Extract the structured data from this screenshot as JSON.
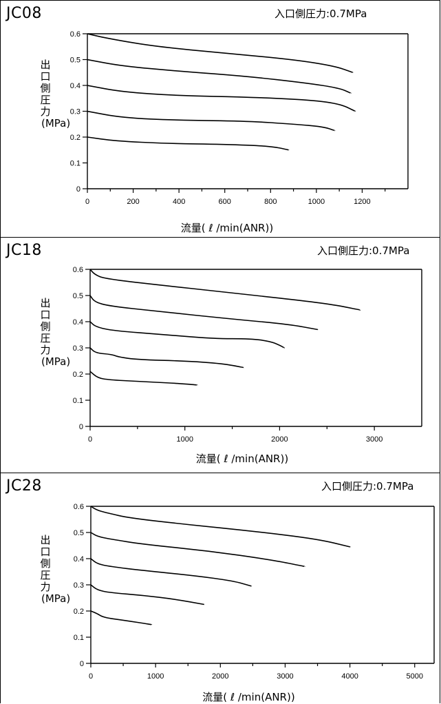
{
  "chart_data": [
    {
      "type": "line",
      "title": "JC08",
      "annotation": "入口側圧力:0.7MPa",
      "ylabel_lines": [
        "出",
        "口",
        "側",
        "圧",
        "力",
        "(MPa)"
      ],
      "xlabel": "流量( ℓ /min(ANR))",
      "xlim": [
        0,
        1400
      ],
      "ylim": [
        0,
        0.6
      ],
      "x_ticks": [
        0,
        200,
        400,
        600,
        800,
        1000,
        1200
      ],
      "y_ticks": [
        0,
        0.1,
        0.2,
        0.3,
        0.4,
        0.5,
        0.6
      ],
      "y_tick_labels": [
        "0",
        "0.1",
        "0.2",
        "0.3",
        "0.4",
        "0.5",
        "0.6"
      ],
      "grid": false,
      "series": [
        {
          "points": [
            [
              0,
              0.6
            ],
            [
              100,
              0.58
            ],
            [
              300,
              0.55
            ],
            [
              600,
              0.525
            ],
            [
              900,
              0.5
            ],
            [
              1080,
              0.475
            ],
            [
              1160,
              0.45
            ]
          ]
        },
        {
          "points": [
            [
              0,
              0.5
            ],
            [
              150,
              0.475
            ],
            [
              400,
              0.455
            ],
            [
              700,
              0.435
            ],
            [
              950,
              0.41
            ],
            [
              1100,
              0.39
            ],
            [
              1150,
              0.37
            ]
          ]
        },
        {
          "points": [
            [
              0,
              0.4
            ],
            [
              150,
              0.375
            ],
            [
              400,
              0.36
            ],
            [
              700,
              0.355
            ],
            [
              950,
              0.345
            ],
            [
              1100,
              0.33
            ],
            [
              1170,
              0.3
            ]
          ]
        },
        {
          "points": [
            [
              0,
              0.3
            ],
            [
              150,
              0.275
            ],
            [
              400,
              0.265
            ],
            [
              700,
              0.262
            ],
            [
              900,
              0.25
            ],
            [
              1030,
              0.24
            ],
            [
              1080,
              0.225
            ]
          ]
        },
        {
          "points": [
            [
              0,
              0.2
            ],
            [
              120,
              0.185
            ],
            [
              350,
              0.175
            ],
            [
              600,
              0.172
            ],
            [
              800,
              0.165
            ],
            [
              880,
              0.15
            ]
          ]
        }
      ]
    },
    {
      "type": "line",
      "title": "JC18",
      "annotation": "入口側圧力:0.7MPa",
      "ylabel_lines": [
        "出",
        "口",
        "側",
        "圧",
        "力",
        "(MPa)"
      ],
      "xlabel": "流量( ℓ /min(ANR))",
      "xlim": [
        0,
        3500
      ],
      "ylim": [
        0,
        0.6
      ],
      "x_ticks": [
        0,
        1000,
        2000,
        3000
      ],
      "x_minor_ticks": [
        500,
        1500,
        2500
      ],
      "y_ticks": [
        0,
        0.1,
        0.2,
        0.3,
        0.4,
        0.5,
        0.6
      ],
      "y_tick_labels": [
        "0",
        "0.1",
        "0.2",
        "0.3",
        "0.4",
        "0.5",
        "0.6"
      ],
      "grid": false,
      "series": [
        {
          "points": [
            [
              0,
              0.6
            ],
            [
              50,
              0.58
            ],
            [
              150,
              0.565
            ],
            [
              600,
              0.545
            ],
            [
              1500,
              0.51
            ],
            [
              2500,
              0.47
            ],
            [
              2850,
              0.445
            ]
          ]
        },
        {
          "points": [
            [
              0,
              0.5
            ],
            [
              50,
              0.475
            ],
            [
              200,
              0.46
            ],
            [
              700,
              0.44
            ],
            [
              1500,
              0.41
            ],
            [
              2100,
              0.39
            ],
            [
              2400,
              0.37
            ]
          ]
        },
        {
          "points": [
            [
              0,
              0.4
            ],
            [
              60,
              0.38
            ],
            [
              250,
              0.365
            ],
            [
              800,
              0.35
            ],
            [
              1300,
              0.335
            ],
            [
              1700,
              0.335
            ],
            [
              1900,
              0.325
            ],
            [
              2000,
              0.31
            ],
            [
              2050,
              0.3
            ]
          ]
        },
        {
          "points": [
            [
              0,
              0.3
            ],
            [
              60,
              0.28
            ],
            [
              230,
              0.275
            ],
            [
              300,
              0.265
            ],
            [
              500,
              0.255
            ],
            [
              1000,
              0.25
            ],
            [
              1400,
              0.24
            ],
            [
              1620,
              0.225
            ]
          ]
        },
        {
          "points": [
            [
              0,
              0.21
            ],
            [
              80,
              0.185
            ],
            [
              200,
              0.178
            ],
            [
              500,
              0.172
            ],
            [
              900,
              0.165
            ],
            [
              1130,
              0.158
            ]
          ]
        }
      ]
    },
    {
      "type": "line",
      "title": "JC28",
      "annotation": "入口側圧力:0.7MPa",
      "ylabel_lines": [
        "出",
        "口",
        "側",
        "圧",
        "力",
        "(MPa)"
      ],
      "xlabel": "流量( ℓ /min(ANR))",
      "xlim": [
        0,
        5300
      ],
      "ylim": [
        0,
        0.6
      ],
      "x_ticks": [
        0,
        1000,
        2000,
        3000,
        4000,
        5000
      ],
      "x_minor_ticks": [
        500,
        1500,
        2500,
        3500,
        4500
      ],
      "y_ticks": [
        0,
        0.1,
        0.2,
        0.3,
        0.4,
        0.5,
        0.6
      ],
      "y_tick_labels": [
        "0",
        "0.1",
        "0.2",
        "0.3",
        "0.4",
        "0.5",
        "0.6"
      ],
      "grid": false,
      "series": [
        {
          "points": [
            [
              0,
              0.6
            ],
            [
              100,
              0.585
            ],
            [
              250,
              0.575
            ],
            [
              600,
              0.555
            ],
            [
              1500,
              0.53
            ],
            [
              2500,
              0.505
            ],
            [
              3500,
              0.475
            ],
            [
              4000,
              0.445
            ]
          ]
        },
        {
          "points": [
            [
              0,
              0.5
            ],
            [
              100,
              0.485
            ],
            [
              300,
              0.475
            ],
            [
              800,
              0.455
            ],
            [
              1800,
              0.43
            ],
            [
              2800,
              0.395
            ],
            [
              3300,
              0.37
            ]
          ]
        },
        {
          "points": [
            [
              0,
              0.4
            ],
            [
              100,
              0.38
            ],
            [
              300,
              0.37
            ],
            [
              800,
              0.355
            ],
            [
              1600,
              0.335
            ],
            [
              2200,
              0.315
            ],
            [
              2480,
              0.295
            ]
          ]
        },
        {
          "points": [
            [
              0,
              0.3
            ],
            [
              100,
              0.28
            ],
            [
              300,
              0.27
            ],
            [
              800,
              0.26
            ],
            [
              1300,
              0.245
            ],
            [
              1750,
              0.225
            ]
          ]
        },
        {
          "points": [
            [
              0,
              0.2
            ],
            [
              100,
              0.19
            ],
            [
              200,
              0.175
            ],
            [
              500,
              0.165
            ],
            [
              940,
              0.148
            ]
          ]
        }
      ]
    }
  ]
}
